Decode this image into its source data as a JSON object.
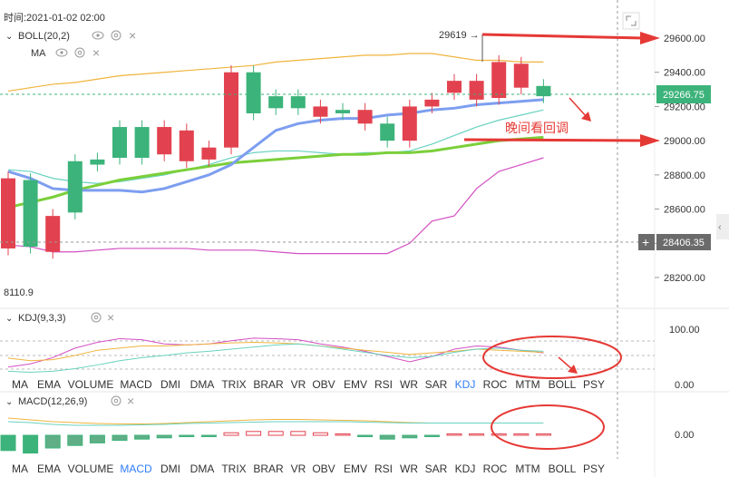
{
  "header": {
    "time_label": "时间:2021-01-02 02:00",
    "boll_label": "BOLL(20,2)",
    "ma_label": "MA",
    "low_label": "8110.9"
  },
  "colors": {
    "up": "#3cb37a",
    "down": "#e2424f",
    "boll_upper": "#f0b43c",
    "boll_lower": "#d34fc2",
    "ma_blue": "#7d9ef0",
    "ma_green": "#7bcf3a",
    "boll_mid": "#69d2c0",
    "annotation": "#e53935"
  },
  "price_axis": {
    "ticks": [
      "29600.00",
      "29400.00",
      "29200.00",
      "29000.00",
      "28800.00",
      "28600.00",
      "28400.00",
      "28200.00"
    ],
    "current_price": "29266.75",
    "crosshair_price": "28406.35"
  },
  "annotations": {
    "high_marker": "29619 →",
    "text": "晚间看回调",
    "plus": "+"
  },
  "kdj": {
    "label": "KDJ(9,3,3)",
    "axis_top": "100.00",
    "axis_bottom": "0.00"
  },
  "macd": {
    "label": "MACD(12,26,9)",
    "axis_zero": "0.00"
  },
  "tabs_row1": [
    "MA",
    "EMA",
    "VOLUME",
    "MACD",
    "DMI",
    "DMA",
    "TRIX",
    "BRAR",
    "VR",
    "OBV",
    "EMV",
    "RSI",
    "WR",
    "SAR",
    "KDJ",
    "ROC",
    "MTM",
    "BOLL",
    "PSY"
  ],
  "tabs_row1_active": "KDJ",
  "tabs_row2": [
    "MA",
    "EMA",
    "VOLUME",
    "MACD",
    "DMI",
    "DMA",
    "TRIX",
    "BRAR",
    "VR",
    "OBV",
    "EMV",
    "RSI",
    "WR",
    "SAR",
    "KDJ",
    "ROC",
    "MTM",
    "BOLL",
    "PSY"
  ],
  "tabs_row2_active": "MACD",
  "chart_data": {
    "type": "candlestick",
    "y_range": [
      28100,
      29800
    ],
    "candles": [
      {
        "o": 28780,
        "c": 28370
      },
      {
        "o": 28380,
        "c": 28770
      },
      {
        "o": 28560,
        "c": 28350
      },
      {
        "o": 28580,
        "c": 28880
      },
      {
        "o": 28860,
        "c": 28890
      },
      {
        "o": 28900,
        "c": 29080
      },
      {
        "o": 28900,
        "c": 29080
      },
      {
        "o": 29080,
        "c": 28920
      },
      {
        "o": 29060,
        "c": 28880
      },
      {
        "o": 28960,
        "c": 28890
      },
      {
        "o": 29400,
        "c": 28960
      },
      {
        "o": 29160,
        "c": 29400
      },
      {
        "o": 29190,
        "c": 29260
      },
      {
        "o": 29190,
        "c": 29260
      },
      {
        "o": 29200,
        "c": 29140
      },
      {
        "o": 29160,
        "c": 29180
      },
      {
        "o": 29180,
        "c": 29100
      },
      {
        "o": 29000,
        "c": 29100
      },
      {
        "o": 29200,
        "c": 29000
      },
      {
        "o": 29240,
        "c": 29200
      },
      {
        "o": 29350,
        "c": 29280
      },
      {
        "o": 29350,
        "c": 29240
      },
      {
        "o": 29460,
        "c": 29250
      },
      {
        "o": 29450,
        "c": 29310
      },
      {
        "o": 29260,
        "c": 29320
      }
    ],
    "boll_upper": [
      29290,
      29310,
      29330,
      29340,
      29360,
      29380,
      29390,
      29400,
      29410,
      29420,
      29430,
      29440,
      29460,
      29470,
      29480,
      29490,
      29500,
      29500,
      29510,
      29510,
      29490,
      29470,
      29470,
      29460,
      29460
    ],
    "boll_lower": [
      28390,
      28380,
      28350,
      28350,
      28360,
      28370,
      28370,
      28370,
      28370,
      28360,
      28360,
      28360,
      28350,
      28340,
      28340,
      28340,
      28340,
      28340,
      28400,
      28530,
      28560,
      28720,
      28820,
      28860,
      28900
    ],
    "ma_blue": [
      28820,
      28780,
      28720,
      28710,
      28710,
      28710,
      28700,
      28720,
      28760,
      28800,
      28860,
      28960,
      29060,
      29100,
      29120,
      29130,
      29130,
      29150,
      29160,
      29180,
      29190,
      29210,
      29220,
      29230,
      29240
    ],
    "ma_green": [
      28610,
      28640,
      28670,
      28710,
      28740,
      28770,
      28790,
      28810,
      28830,
      28850,
      28870,
      28880,
      28890,
      28900,
      28910,
      28920,
      28920,
      28930,
      28930,
      28940,
      28960,
      28980,
      29000,
      29010,
      29020
    ],
    "boll_mid": [
      28830,
      28820,
      28780,
      28760,
      28750,
      28760,
      28780,
      28800,
      28830,
      28860,
      28900,
      28930,
      28940,
      28940,
      28930,
      28920,
      28930,
      28930,
      28940,
      28980,
      29030,
      29080,
      29120,
      29150,
      29180
    ],
    "kdj": {
      "k": [
        28,
        34,
        46,
        64,
        75,
        82,
        80,
        72,
        70,
        72,
        78,
        83,
        82,
        80,
        72,
        66,
        58,
        48,
        38,
        48,
        62,
        68,
        66,
        60,
        55
      ],
      "d": [
        45,
        40,
        42,
        50,
        60,
        64,
        68,
        68,
        70,
        72,
        74,
        75,
        74,
        72,
        68,
        64,
        60,
        56,
        52,
        55,
        58,
        62,
        60,
        58,
        56
      ],
      "j": [
        20,
        18,
        20,
        25,
        32,
        40,
        46,
        50,
        55,
        58,
        62,
        66,
        70,
        72,
        68,
        62,
        56,
        50,
        46,
        48,
        56,
        62,
        64,
        60,
        58
      ]
    },
    "macd": {
      "dif": [
        38,
        34,
        30,
        28,
        26,
        25,
        25,
        26,
        28,
        30,
        32,
        34,
        35,
        35,
        34,
        33,
        32,
        30,
        28,
        27,
        27,
        27,
        27,
        27,
        27
      ],
      "dea": [
        30,
        28,
        24,
        22,
        22,
        22,
        23,
        24,
        26,
        27,
        28,
        29,
        30,
        30,
        30,
        30,
        29,
        28,
        27,
        27,
        27,
        27,
        27,
        27,
        27
      ],
      "hist": [
        -12,
        -14,
        -10,
        -8,
        -6,
        -4,
        -3,
        -2,
        -1,
        -1,
        2,
        3,
        3,
        3,
        2,
        1,
        -1,
        -3,
        -2,
        -1,
        0,
        0,
        1,
        1,
        0
      ]
    }
  }
}
